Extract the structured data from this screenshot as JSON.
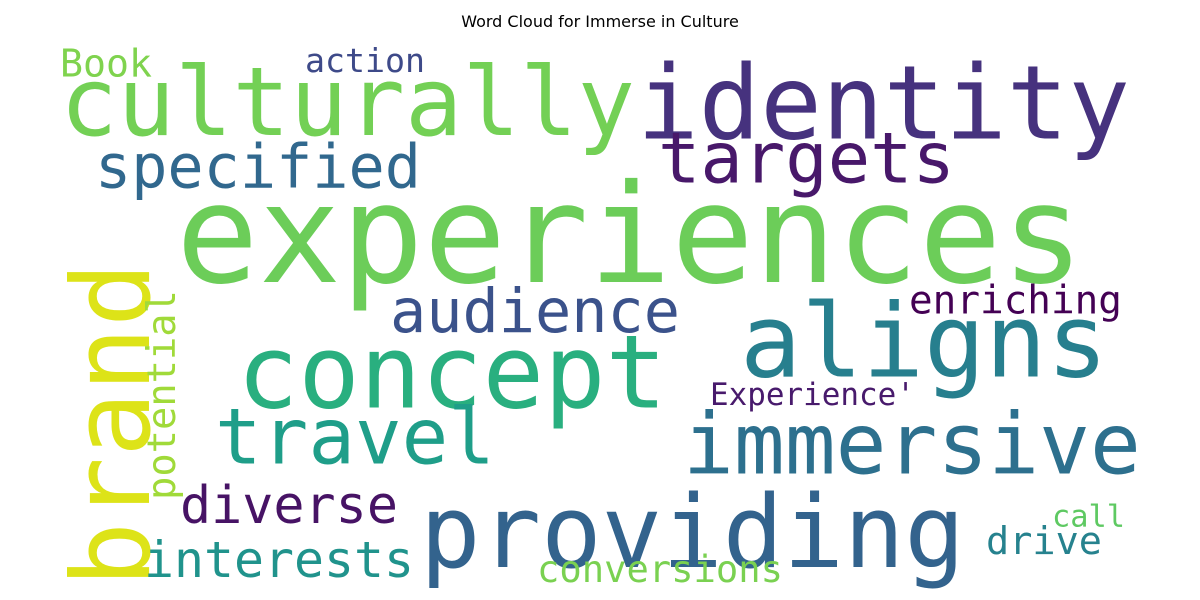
{
  "chart_data": {
    "type": "wordcloud",
    "title": "Word Cloud for Immerse in Culture",
    "words": [
      {
        "text": "experiences",
        "color": "#6ccd59"
      },
      {
        "text": "identity",
        "color": "#46327e"
      },
      {
        "text": "culturally",
        "color": "#73d055"
      },
      {
        "text": "concept",
        "color": "#29af7f"
      },
      {
        "text": "aligns",
        "color": "#277f8e"
      },
      {
        "text": "providing",
        "color": "#33638d"
      },
      {
        "text": "brand",
        "color": "#dde318"
      },
      {
        "text": "immersive",
        "color": "#2d708e"
      },
      {
        "text": "travel",
        "color": "#1f9e89"
      },
      {
        "text": "targets",
        "color": "#48186a"
      },
      {
        "text": "audience",
        "color": "#3b528b"
      },
      {
        "text": "specified",
        "color": "#31688e"
      },
      {
        "text": "interests",
        "color": "#20938c"
      },
      {
        "text": "diverse",
        "color": "#471365"
      },
      {
        "text": "enriching",
        "color": "#440154"
      },
      {
        "text": "potential",
        "color": "#a0da39"
      },
      {
        "text": "Experience'",
        "color": "#481a6c"
      },
      {
        "text": "conversions",
        "color": "#7ad151"
      },
      {
        "text": "drive",
        "color": "#26828e"
      },
      {
        "text": "action",
        "color": "#3e4a89"
      },
      {
        "text": "Book",
        "color": "#7fd34e"
      },
      {
        "text": "call",
        "color": "#5ec962"
      }
    ]
  }
}
